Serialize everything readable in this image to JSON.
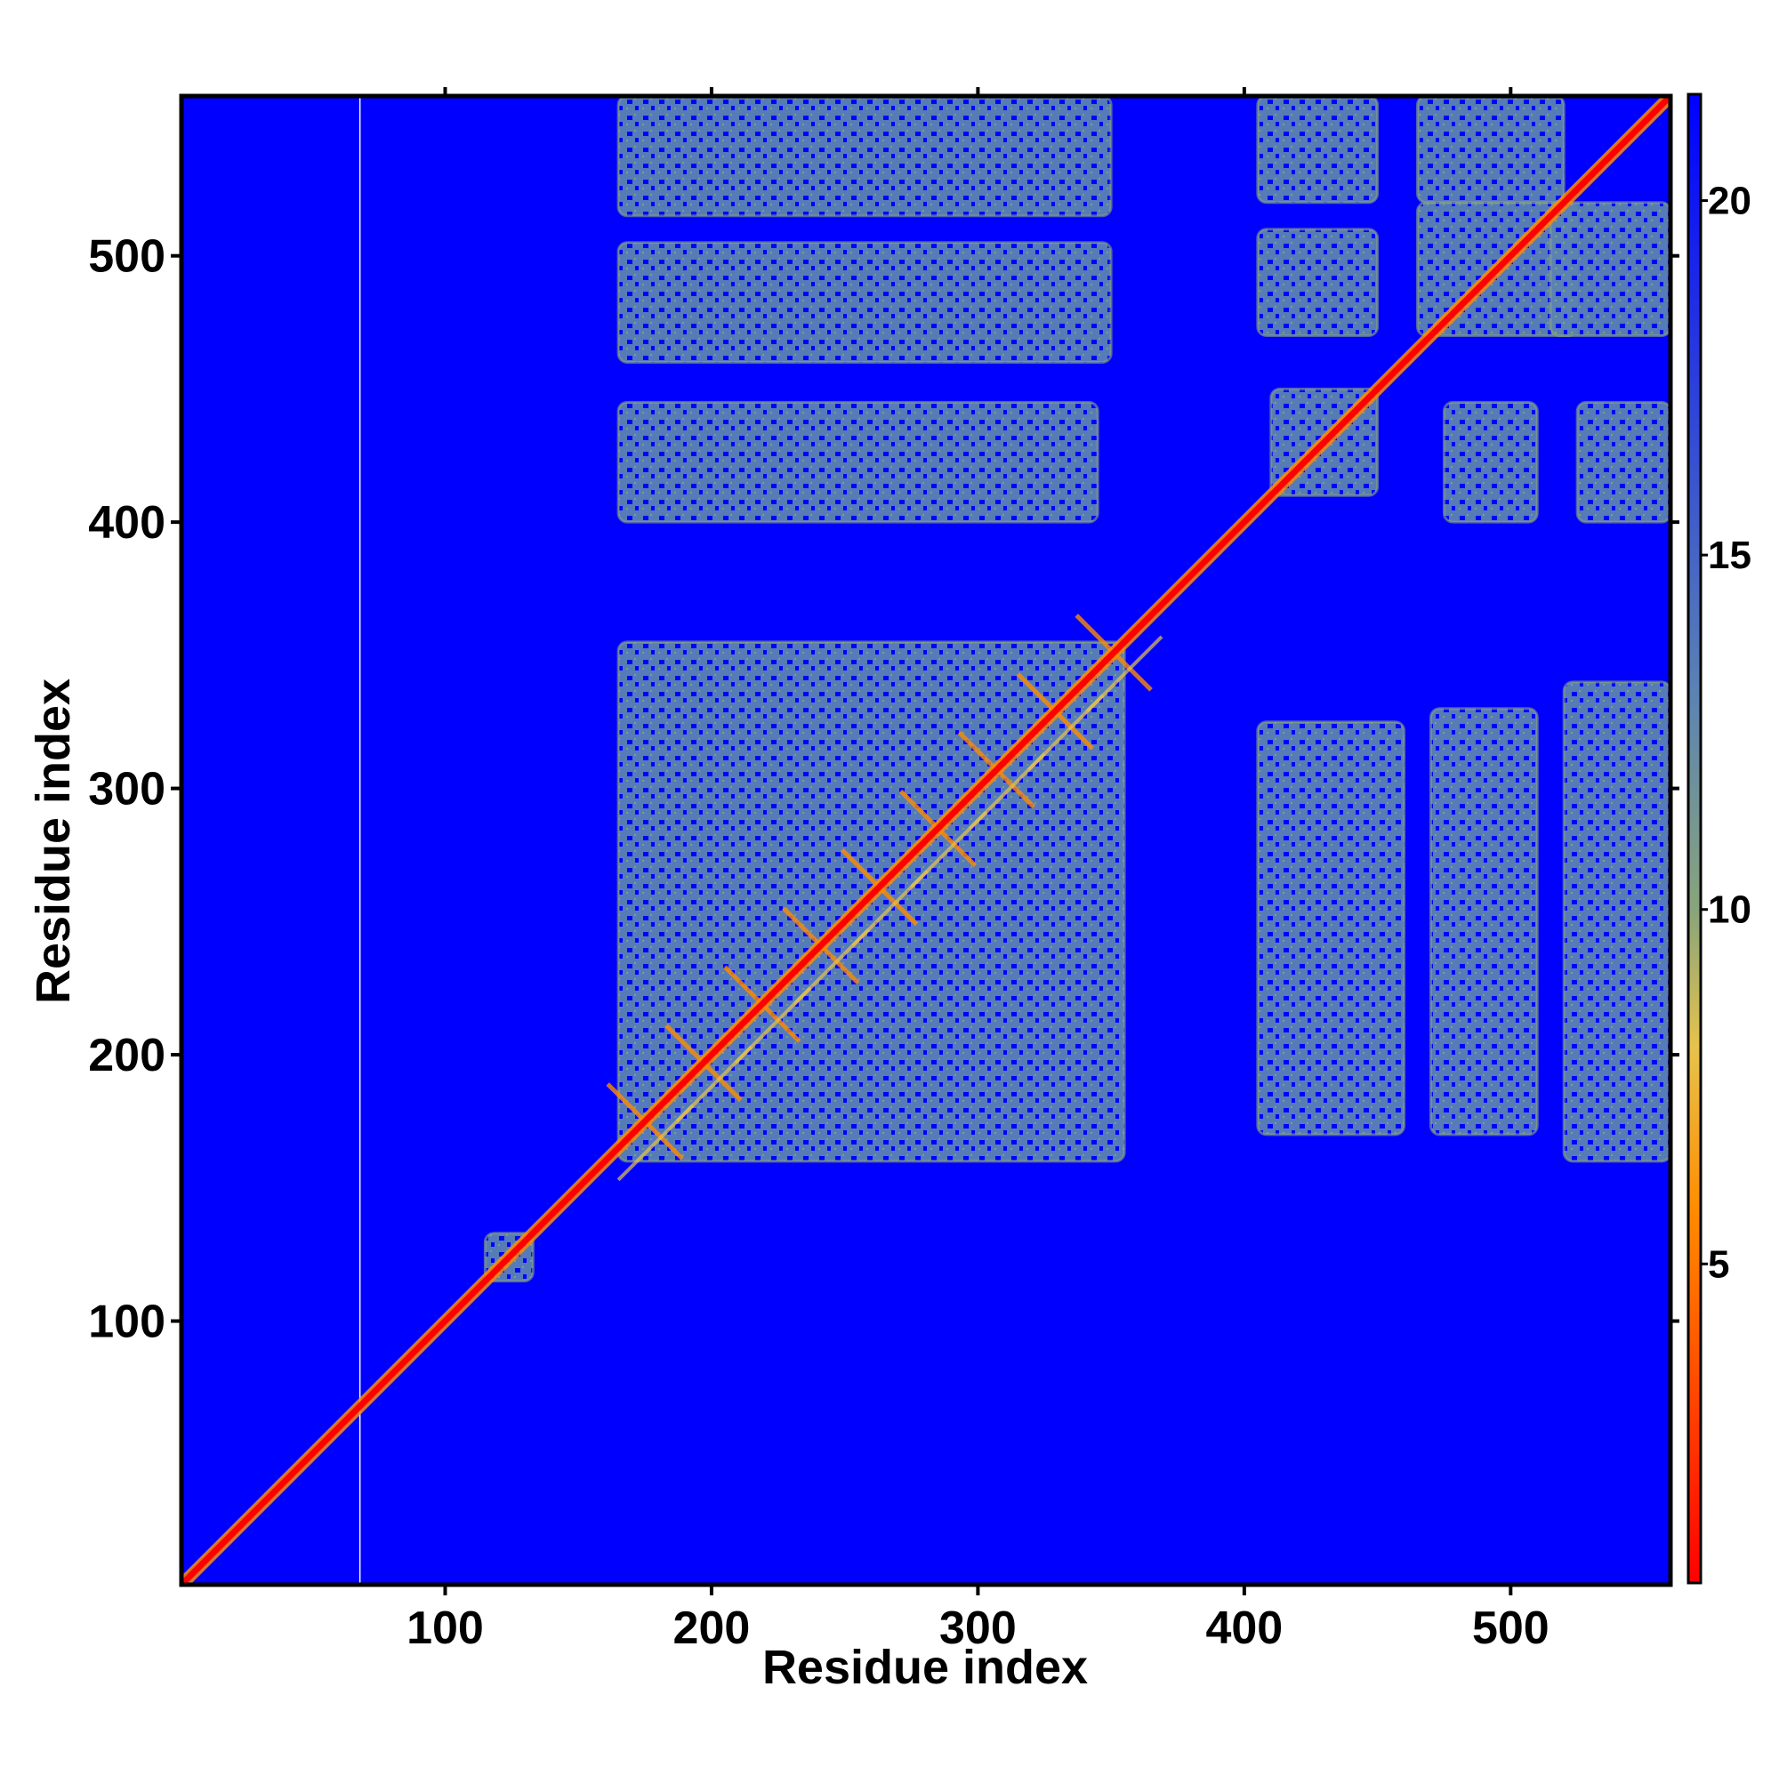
{
  "chart_data": {
    "type": "heatmap",
    "title": "",
    "xlabel": "Residue index",
    "ylabel": "Residue index",
    "xlim": [
      1,
      560
    ],
    "ylim": [
      1,
      560
    ],
    "x_ticks": [
      100,
      200,
      300,
      400,
      500
    ],
    "y_ticks": [
      100,
      200,
      300,
      400,
      500
    ],
    "x_tick_labels": [
      "100",
      "200",
      "300",
      "400",
      "500"
    ],
    "y_tick_labels": [
      "100",
      "200",
      "300",
      "400",
      "500"
    ],
    "colorbar": {
      "range": [
        0.5,
        21.5
      ],
      "ticks": [
        5,
        10,
        15,
        20
      ],
      "tick_labels": [
        "5",
        "10",
        "15",
        "20"
      ],
      "colors": [
        "#ff0000",
        "#ff8c00",
        "#e6c34d",
        "#8aa57a",
        "#5a82b4",
        "#0000ff"
      ],
      "stops": [
        0,
        0.25,
        0.36,
        0.45,
        0.6,
        1.0
      ]
    },
    "background_value": 21,
    "background_color": "#0000ff",
    "diagonal": {
      "from": 1,
      "to": 560,
      "value": 2,
      "color": "#ff0000"
    },
    "regions": [
      {
        "x": [
          165,
          355
        ],
        "y": [
          160,
          355
        ],
        "value": 17
      },
      {
        "x": [
          165,
          345
        ],
        "y": [
          400,
          445
        ]
      },
      {
        "x": [
          165,
          350
        ],
        "y": [
          460,
          505
        ]
      },
      {
        "x": [
          165,
          350
        ],
        "y": [
          515,
          560
        ]
      },
      {
        "x": [
          405,
          460
        ],
        "y": [
          170,
          325
        ]
      },
      {
        "x": [
          470,
          510
        ],
        "y": [
          170,
          330
        ]
      },
      {
        "x": [
          520,
          560
        ],
        "y": [
          160,
          340
        ]
      },
      {
        "x": [
          410,
          450
        ],
        "y": [
          410,
          450
        ]
      },
      {
        "x": [
          405,
          450
        ],
        "y": [
          470,
          510
        ]
      },
      {
        "x": [
          405,
          450
        ],
        "y": [
          520,
          560
        ]
      },
      {
        "x": [
          475,
          510
        ],
        "y": [
          400,
          445
        ]
      },
      {
        "x": [
          525,
          560
        ],
        "y": [
          400,
          445
        ]
      },
      {
        "x": [
          465,
          525
        ],
        "y": [
          470,
          520
        ]
      },
      {
        "x": [
          465,
          520
        ],
        "y": [
          520,
          560
        ]
      },
      {
        "x": [
          515,
          560
        ],
        "y": [
          470,
          520
        ]
      },
      {
        "x": [
          115,
          133
        ],
        "y": [
          115,
          133
        ]
      }
    ]
  }
}
